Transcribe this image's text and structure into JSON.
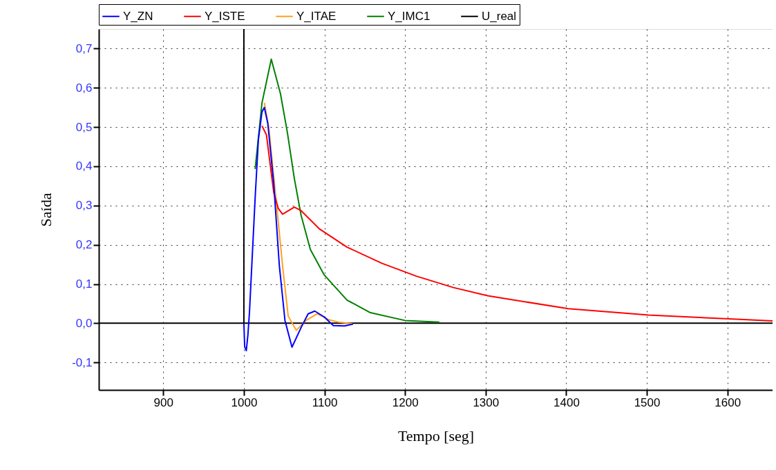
{
  "chart_data": {
    "type": "line",
    "xlabel": "Tempo [seg]",
    "ylabel": "Saída",
    "xlim": [
      820,
      1656
    ],
    "ylim": [
      -0.17,
      0.75
    ],
    "xticks": [
      900,
      1000,
      1100,
      1200,
      1300,
      1400,
      1500,
      1600
    ],
    "yticks": [
      {
        "value": -0.1,
        "label": "-0,1"
      },
      {
        "value": 0,
        "label": "0,0"
      },
      {
        "value": 0.1,
        "label": "0,1"
      },
      {
        "value": 0.2,
        "label": "0,2"
      },
      {
        "value": 0.3,
        "label": "0,3"
      },
      {
        "value": 0.4,
        "label": "0,4"
      },
      {
        "value": 0.5,
        "label": "0,5"
      },
      {
        "value": 0.6,
        "label": "0,6"
      },
      {
        "value": 0.7,
        "label": "0,7"
      }
    ],
    "grid": true,
    "legend": "top",
    "line_style": "solid",
    "marker": "none",
    "series": [
      {
        "name": "Y_ZN",
        "color": "#0000ff",
        "x": [
          1000,
          1001,
          1003,
          1005,
          1007,
          1014,
          1018,
          1022.5,
          1025.4,
          1029.7,
          1037,
          1044,
          1051,
          1059.7,
          1071,
          1079.7,
          1088,
          1099.7,
          1111,
          1125,
          1135.5
        ],
        "values": [
          0,
          -0.06,
          -0.07,
          -0.03,
          0.03,
          0.32,
          0.468,
          0.539,
          0.55,
          0.509,
          0.357,
          0.147,
          0.007,
          -0.061,
          -0.011,
          0.024,
          0.031,
          0.016,
          -0.006,
          -0.007,
          -0.002
        ]
      },
      {
        "name": "Y_ISTE",
        "color": "#ff0000",
        "x": [
          1022.5,
          1028,
          1037,
          1042.6,
          1048,
          1062.6,
          1071,
          1094,
          1128,
          1171,
          1214,
          1260,
          1302.5,
          1402.5,
          1502.4,
          1602.4,
          1656
        ],
        "values": [
          0.503,
          0.48,
          0.334,
          0.293,
          0.278,
          0.296,
          0.287,
          0.24,
          0.194,
          0.153,
          0.12,
          0.091,
          0.07,
          0.037,
          0.021,
          0.011,
          0.006
        ]
      },
      {
        "name": "Y_ITAE",
        "color": "#ffa020",
        "x": [
          1025.4,
          1031,
          1039.7,
          1048,
          1055,
          1065,
          1077,
          1091,
          1105.4,
          1117,
          1135
        ],
        "values": [
          0.562,
          0.498,
          0.32,
          0.147,
          0.018,
          -0.018,
          0.007,
          0.024,
          0.009,
          0.003,
          -0.001
        ]
      },
      {
        "name": "Y_IMC1",
        "color": "#008000",
        "x": [
          1014,
          1022.5,
          1034,
          1045.4,
          1054,
          1062.6,
          1071,
          1082.5,
          1099.7,
          1128,
          1157,
          1200,
          1242.5
        ],
        "values": [
          0.393,
          0.562,
          0.673,
          0.585,
          0.486,
          0.369,
          0.275,
          0.188,
          0.123,
          0.059,
          0.027,
          0.007,
          0.003
        ]
      },
      {
        "name": "U_real",
        "color": "#000000",
        "x": [
          820,
          1000,
          1000,
          1000,
          1656
        ],
        "values": [
          0,
          0,
          0.75,
          0,
          0
        ]
      }
    ]
  }
}
